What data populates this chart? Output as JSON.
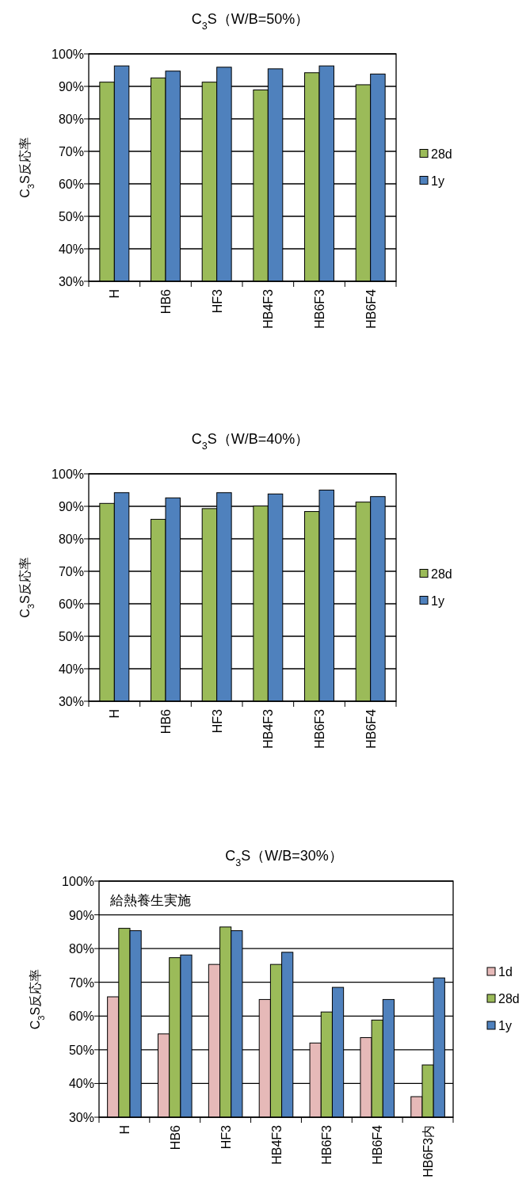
{
  "chart_data": [
    {
      "type": "bar",
      "title": "C$_{3}$S（W/B=50%）",
      "ylabel": "C$_{3}$S反応率",
      "categories": [
        "H",
        "HB6",
        "HF3",
        "HB4F3",
        "HB6F3",
        "HB6F4"
      ],
      "series": [
        {
          "name": "28d",
          "color": "#9bbb59",
          "values": [
            91.3,
            92.6,
            91.3,
            88.9,
            94.2,
            90.5
          ]
        },
        {
          "name": "1y",
          "color": "#4f81bd",
          "values": [
            96.3,
            94.7,
            95.9,
            95.4,
            96.3,
            93.8
          ]
        }
      ],
      "ylim": [
        30,
        100
      ],
      "yticks": [
        {
          "value": 30,
          "label": "30%"
        },
        {
          "value": 40,
          "label": "40%"
        },
        {
          "value": 50,
          "label": "50%"
        },
        {
          "value": 60,
          "label": "60%"
        },
        {
          "value": 70,
          "label": "70%"
        },
        {
          "value": 80,
          "label": "80%"
        },
        {
          "value": 90,
          "label": "90%"
        },
        {
          "value": 100,
          "label": "100%"
        }
      ],
      "grid": "y",
      "legend": "right"
    },
    {
      "type": "bar",
      "title": "C$_{3}$S（W/B=40%）",
      "ylabel": "C$_{3}$S反応率",
      "categories": [
        "H",
        "HB6",
        "HF3",
        "HB4F3",
        "HB6F3",
        "HB6F4"
      ],
      "series": [
        {
          "name": "28d",
          "color": "#9bbb59",
          "values": [
            90.9,
            86.0,
            89.3,
            90.1,
            88.4,
            91.3
          ]
        },
        {
          "name": "1y",
          "color": "#4f81bd",
          "values": [
            94.2,
            92.6,
            94.2,
            93.8,
            95.0,
            93.0
          ]
        }
      ],
      "ylim": [
        30,
        100
      ],
      "yticks": [
        {
          "value": 30,
          "label": "30%"
        },
        {
          "value": 40,
          "label": "40%"
        },
        {
          "value": 50,
          "label": "50%"
        },
        {
          "value": 60,
          "label": "60%"
        },
        {
          "value": 70,
          "label": "70%"
        },
        {
          "value": 80,
          "label": "80%"
        },
        {
          "value": 90,
          "label": "90%"
        },
        {
          "value": 100,
          "label": "100%"
        }
      ],
      "grid": "y",
      "legend": "right"
    },
    {
      "type": "bar",
      "title": "C$_{3}$S（W/B=30%）",
      "ylabel": "C$_{3}$S反応率",
      "categories": [
        "H",
        "HB6",
        "HF3",
        "HB4F3",
        "HB6F3",
        "HB6F4",
        "HB6F3内"
      ],
      "series": [
        {
          "name": "1d",
          "color": "#e6b9b8",
          "values": [
            65.7,
            54.7,
            75.3,
            64.9,
            52.0,
            53.6,
            36.1
          ]
        },
        {
          "name": "28d",
          "color": "#9bbb59",
          "values": [
            86.0,
            77.3,
            86.4,
            75.3,
            61.2,
            58.8,
            45.5
          ]
        },
        {
          "name": "1y",
          "color": "#4f81bd",
          "values": [
            85.3,
            78.1,
            85.3,
            78.9,
            68.5,
            64.9,
            71.3
          ]
        }
      ],
      "ylim": [
        30,
        100
      ],
      "yticks": [
        {
          "value": 30,
          "label": "30%"
        },
        {
          "value": 40,
          "label": "40%"
        },
        {
          "value": 50,
          "label": "50%"
        },
        {
          "value": 60,
          "label": "60%"
        },
        {
          "value": 70,
          "label": "70%"
        },
        {
          "value": 80,
          "label": "80%"
        },
        {
          "value": 90,
          "label": "90%"
        },
        {
          "value": 100,
          "label": "100%"
        }
      ],
      "grid": "y",
      "legend": "right",
      "annotations": [
        "給熱養生実施"
      ]
    }
  ]
}
